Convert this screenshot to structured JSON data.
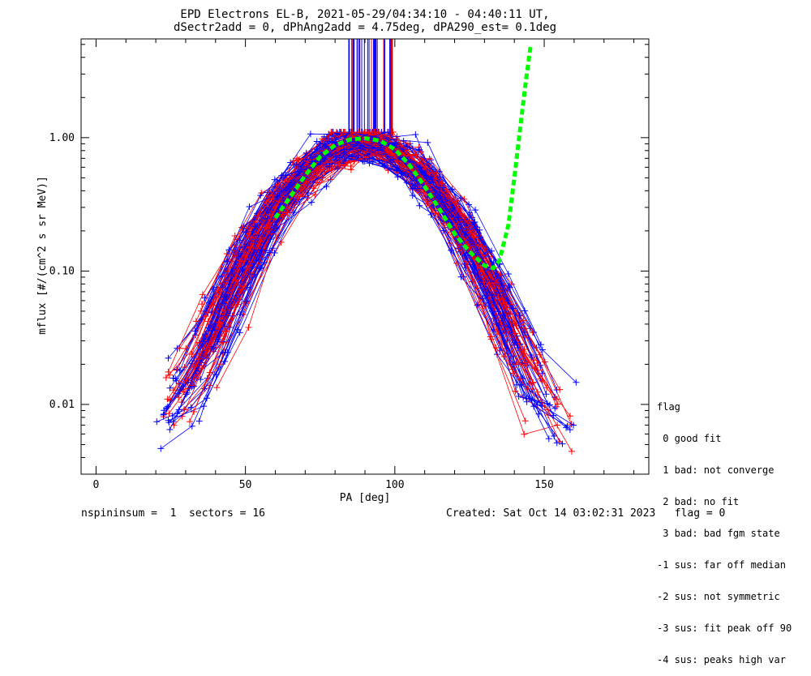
{
  "chart_data": {
    "type": "line",
    "title": "EPD Electrons EL-B, 2021-05-29/04:34:10 - 04:40:11 UT,",
    "subtitle": "dSectr2add = 0, dPhAng2add = 4.75deg, dPA290_est=   0.1deg",
    "xlabel": "PA [deg]",
    "ylabel": "mflux [#/(cm^2 s sr MeV)]",
    "xlim": [
      -5,
      185
    ],
    "ylim": [
      0.003,
      5.5
    ],
    "yscale": "log",
    "x_ticks": [
      0,
      50,
      100,
      150
    ],
    "x_tick_labels": [
      "0",
      "50",
      "100",
      "150"
    ],
    "y_ticks": [
      0.01,
      0.1,
      1.0
    ],
    "y_tick_labels": [
      "0.01",
      "0.10",
      "1.00"
    ],
    "grid": false,
    "series_colors": {
      "red": "#ff0000",
      "blue": "#0000ff",
      "fit": "#00ff00"
    },
    "fit_curve": {
      "x": [
        60,
        65,
        70,
        75,
        80,
        85,
        90,
        95,
        100,
        105,
        110,
        115,
        120,
        125,
        130,
        133,
        135,
        138,
        140,
        142,
        144,
        145.5
      ],
      "y": [
        0.25,
        0.36,
        0.52,
        0.72,
        0.88,
        0.97,
        0.99,
        0.95,
        0.82,
        0.62,
        0.43,
        0.29,
        0.19,
        0.14,
        0.11,
        0.105,
        0.12,
        0.22,
        0.5,
        1.2,
        2.8,
        5.0
      ]
    },
    "vertical_lines_x_range": [
      84,
      100
    ]
  },
  "legend": {
    "header": "flag",
    "items": [
      " 0 good fit",
      " 1 bad: not converge",
      " 2 bad: no fit",
      " 3 bad: bad fgm state",
      "-1 sus: far off median",
      "-2 sus: not symmetric",
      "-3 sus: fit peak off 90",
      "-4 sus: peaks high var"
    ]
  },
  "footer": {
    "left": "nspininsum =  1  sectors = 16",
    "right": "Created: Sat Oct 14 03:02:31 2023   flag = 0"
  }
}
